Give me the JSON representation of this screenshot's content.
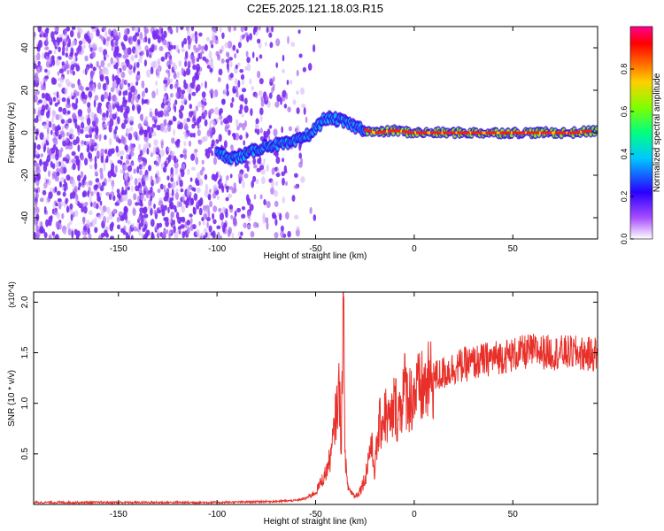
{
  "title": "C2E5.2025.121.18.03.R15",
  "colors": {
    "snr_line": "#e8302a",
    "axes": "#000000"
  },
  "chart_data": [
    {
      "type": "heatmap",
      "xlabel": "Height of straight line (km)",
      "ylabel": "Frequency (Hz)",
      "xlim": [
        -193,
        93
      ],
      "ylim": [
        -50,
        50
      ],
      "x_ticks": [
        "-150",
        "-100",
        "-50",
        "0",
        "50"
      ],
      "x_tick_values": [
        -150,
        -100,
        -50,
        0,
        50
      ],
      "y_ticks": [
        "-40",
        "-20",
        "0",
        "20",
        "40"
      ],
      "y_tick_values": [
        -40,
        -20,
        0,
        20,
        40
      ],
      "colorbar": {
        "label": "Normalized spectral amplitude",
        "range": [
          0,
          1
        ],
        "ticks": [
          "0.0",
          "0.2",
          "0.4",
          "0.6",
          "0.8"
        ],
        "tick_values": [
          0.0,
          0.2,
          0.4,
          0.6,
          0.8
        ]
      },
      "features": {
        "noise_region_km": [
          -193,
          -58
        ],
        "signal_trace": [
          {
            "x": -100,
            "y": -10
          },
          {
            "x": -90,
            "y": -12
          },
          {
            "x": -75,
            "y": -6
          },
          {
            "x": -62,
            "y": -5
          },
          {
            "x": -52,
            "y": 0
          },
          {
            "x": -45,
            "y": 7
          },
          {
            "x": -38,
            "y": 6
          },
          {
            "x": -30,
            "y": 3
          },
          {
            "x": -20,
            "y": 0
          },
          {
            "x": -10,
            "y": 1
          },
          {
            "x": 0,
            "y": 0
          },
          {
            "x": 10,
            "y": 0
          },
          {
            "x": 30,
            "y": 0
          },
          {
            "x": 60,
            "y": 0
          },
          {
            "x": 80,
            "y": 0
          },
          {
            "x": 93,
            "y": 1
          }
        ]
      }
    },
    {
      "type": "line",
      "xlabel": "Height of straight line (km)",
      "ylabel": "SNR (10 * v/v)",
      "y_multiplier": "(x10^4)",
      "xlim": [
        -193,
        93
      ],
      "ylim": [
        0,
        2.1
      ],
      "x_ticks": [
        "-150",
        "-100",
        "-50",
        "0",
        "50"
      ],
      "x_tick_values": [
        -150,
        -100,
        -50,
        0,
        50
      ],
      "y_ticks": [
        "0.5",
        "1.0",
        "1.5",
        "2.0"
      ],
      "y_tick_values": [
        0.5,
        1.0,
        1.5,
        2.0
      ],
      "series": [
        {
          "x": [
            -193,
            -150,
            -100,
            -70,
            -60,
            -55,
            -50,
            -45,
            -42,
            -40,
            -38,
            -37,
            -36,
            -35,
            -34,
            -33,
            -31,
            -30,
            -28,
            -25,
            -22,
            -20,
            -18,
            -15,
            -12,
            -10,
            -8,
            -5,
            -2,
            0,
            5,
            10,
            15,
            20,
            25,
            30,
            40,
            50,
            60,
            70,
            80,
            90,
            93
          ],
          "y": [
            0.02,
            0.02,
            0.02,
            0.03,
            0.04,
            0.06,
            0.12,
            0.3,
            0.5,
            0.85,
            1.15,
            0.6,
            2.1,
            0.5,
            0.2,
            0.15,
            0.1,
            0.08,
            0.12,
            0.25,
            0.6,
            0.35,
            0.75,
            0.9,
            0.8,
            1.0,
            0.9,
            1.15,
            1.05,
            1.1,
            1.15,
            1.25,
            1.3,
            1.35,
            1.38,
            1.4,
            1.45,
            1.48,
            1.52,
            1.5,
            1.5,
            1.48,
            1.5
          ]
        }
      ]
    }
  ]
}
